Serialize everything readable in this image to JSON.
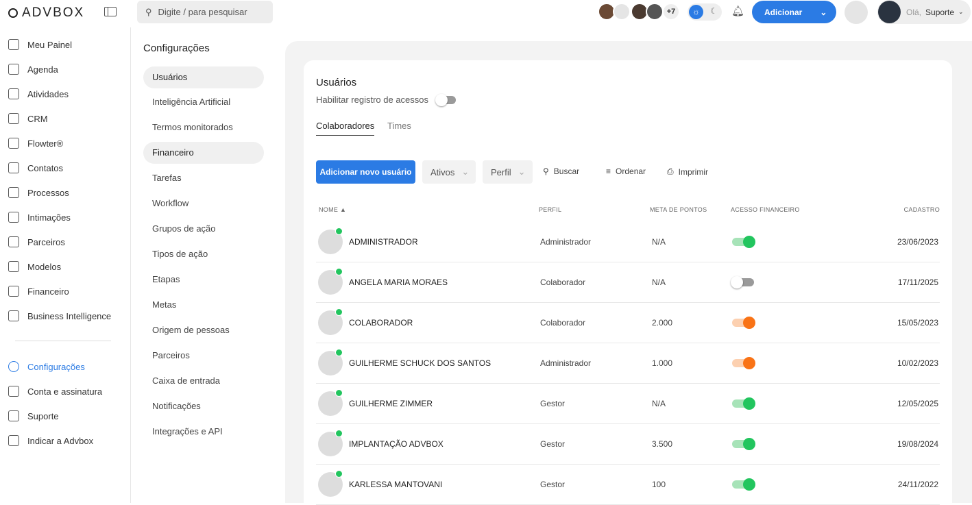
{
  "header": {
    "logo": "ADVBOX",
    "search_placeholder": "Digite / para pesquisar",
    "avatars_more": "+7",
    "add_button": "Adicionar",
    "greeting": "Olá,",
    "user": "Suporte"
  },
  "sidebar": {
    "items": [
      {
        "label": "Meu Painel"
      },
      {
        "label": "Agenda"
      },
      {
        "label": "Atividades"
      },
      {
        "label": "CRM"
      },
      {
        "label": "Flowter®"
      },
      {
        "label": "Contatos"
      },
      {
        "label": "Processos"
      },
      {
        "label": "Intimações"
      },
      {
        "label": "Parceiros"
      },
      {
        "label": "Modelos"
      },
      {
        "label": "Financeiro"
      },
      {
        "label": "Business Intelligence"
      }
    ],
    "bottom": [
      {
        "label": "Configurações",
        "active": true
      },
      {
        "label": "Conta e assinatura"
      },
      {
        "label": "Suporte"
      },
      {
        "label": "Indicar a Advbox"
      }
    ]
  },
  "settings": {
    "title": "Configurações",
    "items": [
      "Usuários",
      "Inteligência Artificial",
      "Termos monitorados",
      "Financeiro",
      "Tarefas",
      "Workflow",
      "Grupos de ação",
      "Tipos de ação",
      "Etapas",
      "Metas",
      "Origem de pessoas",
      "Parceiros",
      "Caixa de entrada",
      "Notificações",
      "Integrações e API"
    ]
  },
  "main": {
    "title": "Usuários",
    "access_log_label": "Habilitar registro de acessos",
    "tabs": [
      "Colaboradores",
      "Times"
    ],
    "toolbar": {
      "add_user": "Adicionar novo usuário",
      "status": "Ativos",
      "profile": "Perfil",
      "search": "Buscar",
      "sort": "Ordenar",
      "print": "Imprimir"
    },
    "columns": [
      "NOME",
      "PERFIL",
      "META DE PONTOS",
      "ACESSO FINANCEIRO",
      "CADASTRO"
    ],
    "rows": [
      {
        "name": "ADMINISTRADOR",
        "profile": "Administrador",
        "meta": "N/A",
        "financial": "on",
        "date": "23/06/2023"
      },
      {
        "name": "ANGELA MARIA MORAES",
        "profile": "Colaborador",
        "meta": "N/A",
        "financial": "off",
        "date": "17/11/2025"
      },
      {
        "name": "COLABORADOR",
        "profile": "Colaborador",
        "meta": "2.000",
        "financial": "partial",
        "date": "15/05/2023"
      },
      {
        "name": "GUILHERME SCHUCK DOS SANTOS",
        "profile": "Administrador",
        "meta": "1.000",
        "financial": "partial",
        "date": "10/02/2023"
      },
      {
        "name": "GUILHERME ZIMMER",
        "profile": "Gestor",
        "meta": "N/A",
        "financial": "on",
        "date": "12/05/2025"
      },
      {
        "name": "IMPLANTAÇÃO ADVBOX",
        "profile": "Gestor",
        "meta": "3.500",
        "financial": "on",
        "date": "19/08/2024"
      },
      {
        "name": "KARLESSA MANTOVANI",
        "profile": "Gestor",
        "meta": "100",
        "financial": "on",
        "date": "24/11/2022"
      }
    ]
  },
  "colors": {
    "accent": "#2b7be4",
    "on": "#22c55e",
    "partial": "#f97316"
  }
}
